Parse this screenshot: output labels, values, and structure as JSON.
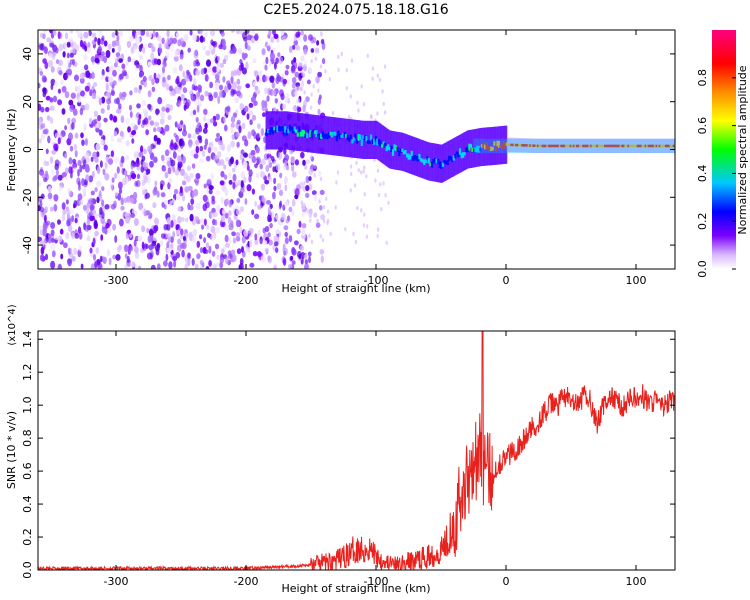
{
  "title": "C2E5.2024.075.18.18.G16",
  "chart_data": [
    {
      "type": "heatmap",
      "xlabel": "Height of straight line (km)",
      "ylabel": "Frequency (Hz)",
      "xlim": [
        -360,
        130
      ],
      "ylim": [
        -50,
        50
      ],
      "x_ticks": [
        -300,
        -200,
        -100,
        0,
        100
      ],
      "y_ticks": [
        -40,
        -20,
        0,
        20,
        40
      ],
      "colorbar": {
        "label": "Normalized spectral amplitude",
        "range": [
          0.0,
          1.0
        ],
        "ticks": [
          0.0,
          0.2,
          0.4,
          0.6,
          0.8
        ],
        "tick_labels": [
          "0.0",
          "0.2",
          "0.4",
          "0.6",
          "0.8"
        ],
        "colors": [
          "#ffffff",
          "#d9b8ff",
          "#7a00ff",
          "#0000ff",
          "#00c8ff",
          "#00ff00",
          "#ffff00",
          "#ff8c00",
          "#ff0000",
          "#ff0080"
        ]
      },
      "features": {
        "noise_region_x": [
          -360,
          -150
        ],
        "signal_track": [
          [
            -185,
            8
          ],
          [
            -170,
            8
          ],
          [
            -155,
            7
          ],
          [
            -140,
            6
          ],
          [
            -125,
            5
          ],
          [
            -110,
            4
          ],
          [
            -100,
            4
          ],
          [
            -90,
            0
          ],
          [
            -80,
            -1
          ],
          [
            -70,
            -3
          ],
          [
            -60,
            -5
          ],
          [
            -50,
            -6
          ],
          [
            -40,
            -3
          ],
          [
            -30,
            0
          ],
          [
            -20,
            1
          ],
          [
            0,
            2
          ],
          [
            25,
            1.5
          ],
          [
            50,
            1.5
          ],
          [
            75,
            1.5
          ],
          [
            100,
            1.5
          ],
          [
            130,
            1.5
          ]
        ]
      },
      "grid": false
    },
    {
      "type": "line",
      "xlabel": "Height of straight line (km)",
      "ylabel": "SNR (10 * v/v)",
      "y_multiplier_label": "(x10^4)",
      "xlim": [
        -360,
        130
      ],
      "ylim": [
        0,
        1.45
      ],
      "x_ticks": [
        -300,
        -200,
        -100,
        0,
        100
      ],
      "y_ticks": [
        0.0,
        0.2,
        0.4,
        0.6,
        0.8,
        1.0,
        1.2,
        1.4
      ],
      "y_tick_labels": [
        "0.0",
        "0.2",
        "0.4",
        "0.6",
        "0.8",
        "1.0",
        "1.2",
        "1.4"
      ],
      "series": [
        {
          "color": "#e8211d",
          "x": [
            -360,
            -300,
            -250,
            -200,
            -170,
            -150,
            -130,
            -120,
            -115,
            -110,
            -105,
            -100,
            -95,
            -90,
            -85,
            -80,
            -70,
            -60,
            -50,
            -45,
            -40,
            -35,
            -30,
            -27,
            -25,
            -22,
            -20,
            -18,
            -15,
            -10,
            -5,
            0,
            5,
            10,
            15,
            20,
            25,
            30,
            35,
            40,
            45,
            50,
            55,
            60,
            65,
            70,
            75,
            80,
            85,
            90,
            95,
            100,
            105,
            110,
            115,
            120,
            125,
            130
          ],
          "y": [
            0.01,
            0.01,
            0.01,
            0.01,
            0.02,
            0.03,
            0.06,
            0.1,
            0.14,
            0.12,
            0.13,
            0.09,
            0.06,
            0.04,
            0.03,
            0.04,
            0.06,
            0.08,
            0.12,
            0.2,
            0.3,
            0.42,
            0.55,
            0.62,
            0.7,
            0.66,
            0.72,
            0.65,
            0.6,
            0.58,
            0.65,
            0.68,
            0.72,
            0.75,
            0.8,
            0.86,
            0.9,
            0.96,
            1.01,
            1.0,
            1.06,
            1.02,
            0.99,
            1.06,
            1.03,
            0.88,
            1.0,
            1.05,
            1.03,
            0.98,
            1.06,
            1.03,
            1.06,
            1.0,
            1.04,
            0.98,
            1.02,
            1.02
          ],
          "spike": {
            "x": -18,
            "y": 1.45
          }
        }
      ],
      "grid": false
    }
  ]
}
